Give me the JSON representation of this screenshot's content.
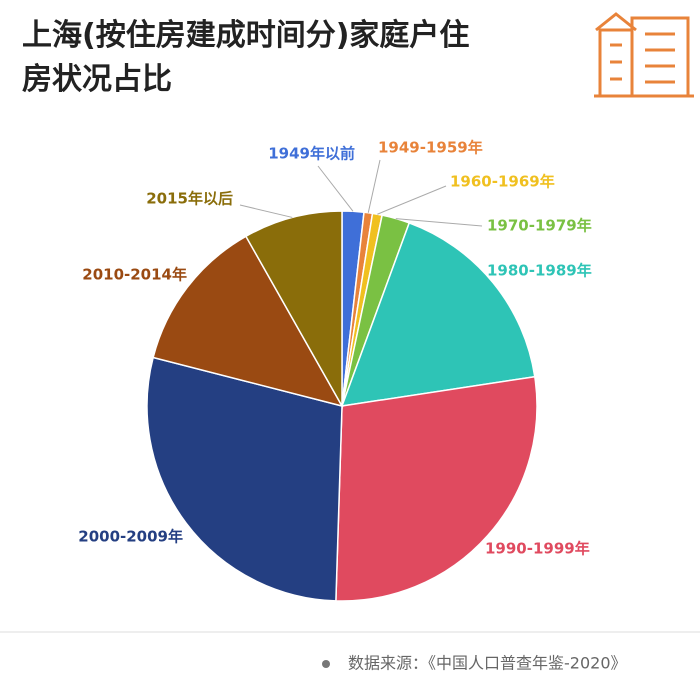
{
  "chart_data": {
    "type": "pie",
    "title": "上海(按住房建成时间分)家庭户住房状况占比",
    "categories": [
      "1949年以前",
      "1949-1959年",
      "1960-1969年",
      "1970-1979年",
      "1980-1989年",
      "1990-1999年",
      "2000-2009年",
      "2010-2014年",
      "2015年以后"
    ],
    "values": [
      1.8,
      0.7,
      0.8,
      2.3,
      17,
      27.9,
      28.5,
      12.8,
      8.2
    ],
    "colors": [
      "#3f6fd8",
      "#e8833a",
      "#f0c020",
      "#7ac143",
      "#2ec4b6",
      "#e04a5f",
      "#243f82",
      "#9a4a12",
      "#8a6d0a"
    ],
    "source": "数据来源：《中国人口普查年鉴-2020》"
  }
}
